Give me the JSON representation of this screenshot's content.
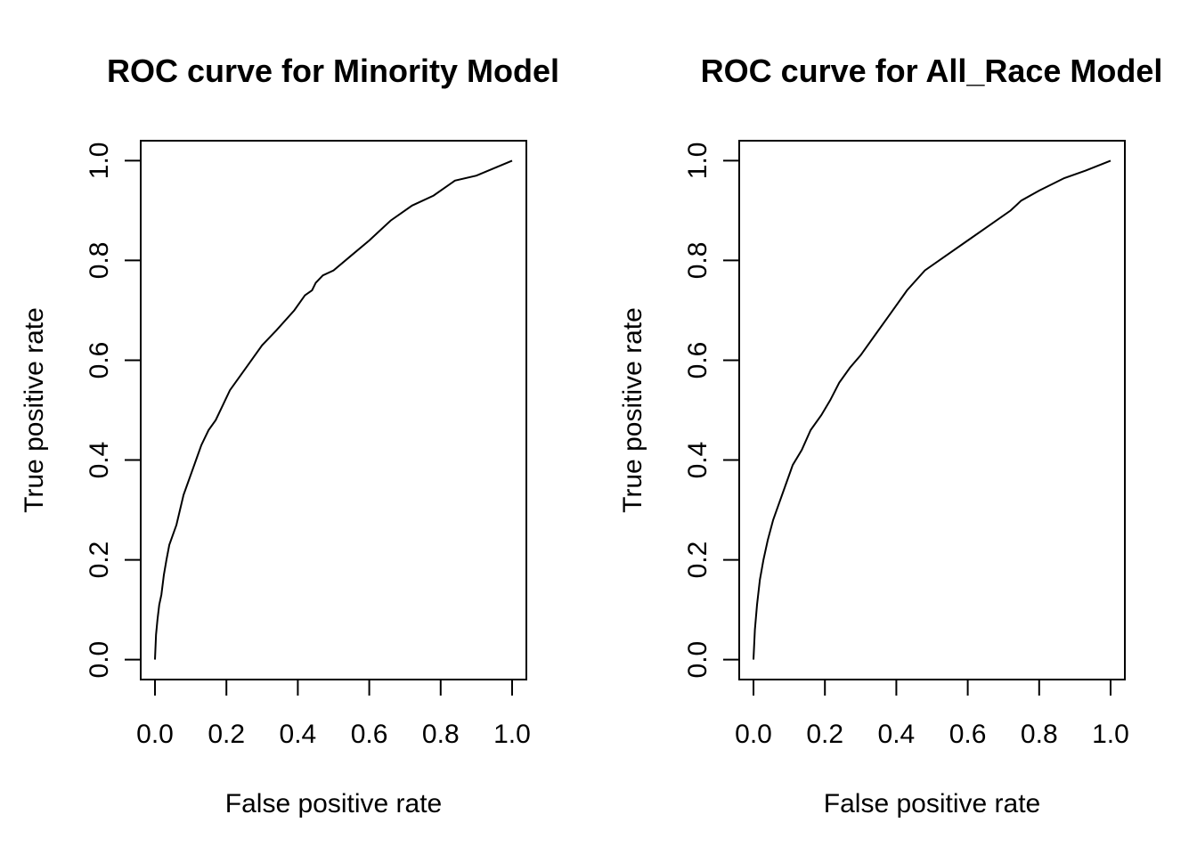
{
  "chart_data": [
    {
      "type": "line",
      "title": "ROC curve for Minority Model",
      "xlabel": "False positive rate",
      "ylabel": "True positive rate",
      "xlim": [
        0,
        1
      ],
      "ylim": [
        0,
        1
      ],
      "xticks": [
        "0.0",
        "0.2",
        "0.4",
        "0.6",
        "0.8",
        "1.0"
      ],
      "yticks": [
        "0.0",
        "0.2",
        "0.4",
        "0.6",
        "0.8",
        "1.0"
      ],
      "grid": false,
      "series": [
        {
          "x": [
            0,
            0.003,
            0.007,
            0.012,
            0.018,
            0.025,
            0.032,
            0.04,
            0.05,
            0.06,
            0.07,
            0.08,
            0.09,
            0.1,
            0.115,
            0.13,
            0.15,
            0.17,
            0.19,
            0.21,
            0.23,
            0.26,
            0.3,
            0.34,
            0.39,
            0.41,
            0.42,
            0.44,
            0.45,
            0.47,
            0.5,
            0.55,
            0.6,
            0.66,
            0.72,
            0.78,
            0.84,
            0.9,
            0.95,
            1.0
          ],
          "y": [
            0,
            0.05,
            0.08,
            0.11,
            0.13,
            0.17,
            0.2,
            0.23,
            0.25,
            0.27,
            0.3,
            0.33,
            0.35,
            0.37,
            0.4,
            0.43,
            0.46,
            0.48,
            0.51,
            0.54,
            0.56,
            0.59,
            0.63,
            0.66,
            0.7,
            0.72,
            0.73,
            0.74,
            0.755,
            0.77,
            0.78,
            0.81,
            0.84,
            0.88,
            0.91,
            0.93,
            0.96,
            0.97,
            0.985,
            1.0
          ]
        }
      ]
    },
    {
      "type": "line",
      "title": "ROC curve for All_Race Model",
      "xlabel": "False positive rate",
      "ylabel": "True positive rate",
      "xlim": [
        0,
        1
      ],
      "ylim": [
        0,
        1
      ],
      "xticks": [
        "0.0",
        "0.2",
        "0.4",
        "0.6",
        "0.8",
        "1.0"
      ],
      "yticks": [
        "0.0",
        "0.2",
        "0.4",
        "0.6",
        "0.8",
        "1.0"
      ],
      "grid": false,
      "series": [
        {
          "x": [
            0,
            0.004,
            0.01,
            0.018,
            0.028,
            0.04,
            0.055,
            0.07,
            0.09,
            0.11,
            0.135,
            0.16,
            0.19,
            0.215,
            0.24,
            0.27,
            0.3,
            0.34,
            0.38,
            0.43,
            0.48,
            0.54,
            0.6,
            0.66,
            0.72,
            0.75,
            0.8,
            0.87,
            0.93,
            1.0
          ],
          "y": [
            0,
            0.06,
            0.11,
            0.16,
            0.2,
            0.24,
            0.28,
            0.31,
            0.35,
            0.39,
            0.42,
            0.46,
            0.49,
            0.52,
            0.555,
            0.585,
            0.61,
            0.65,
            0.69,
            0.74,
            0.78,
            0.81,
            0.84,
            0.87,
            0.9,
            0.92,
            0.94,
            0.965,
            0.98,
            1.0
          ]
        }
      ]
    }
  ]
}
